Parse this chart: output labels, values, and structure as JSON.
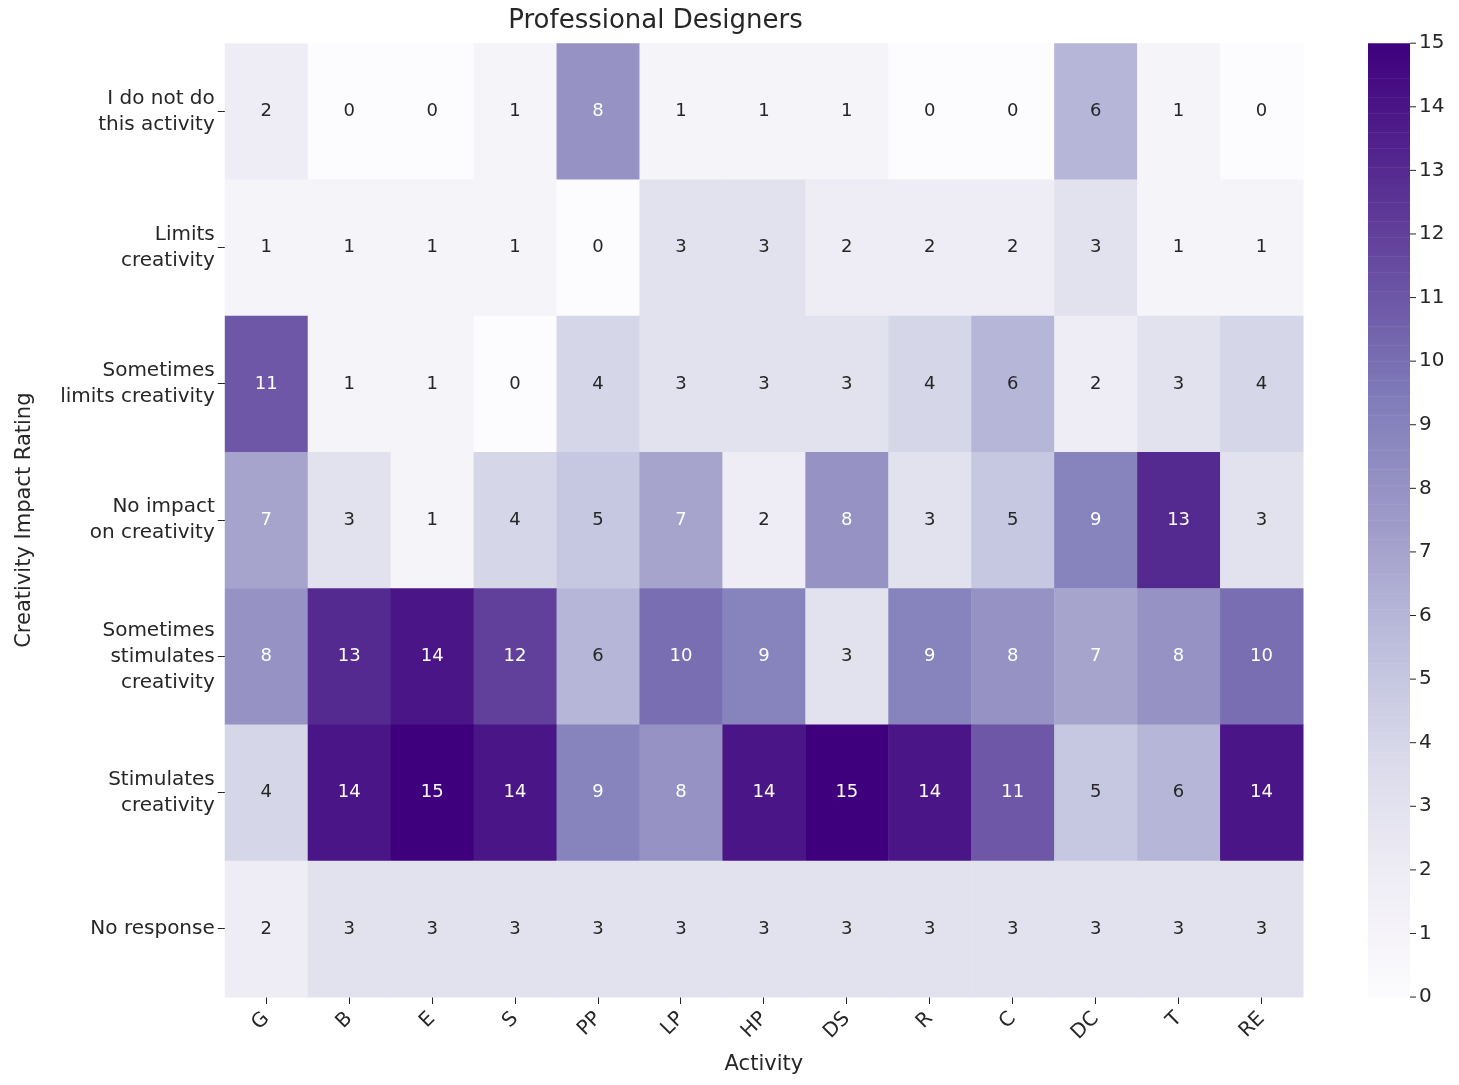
{
  "chart_data": {
    "type": "heatmap",
    "title": "Professional Designers",
    "xlabel": "Activity",
    "ylabel": "Creativity Impact Rating",
    "categories": [
      "G",
      "B",
      "E",
      "S",
      "PP",
      "LP",
      "HP",
      "DS",
      "R",
      "C",
      "DC",
      "T",
      "RE"
    ],
    "y_categories": [
      "I do not do\nthis activity",
      "Limits\ncreativity",
      "Sometimes\nlimits creativity",
      "No impact\non creativity",
      "Sometimes\nstimulates\ncreativity",
      "Stimulates\ncreativity",
      "No response"
    ],
    "cells": [
      [
        2,
        0,
        0,
        1,
        8,
        1,
        1,
        1,
        0,
        0,
        6,
        1,
        0
      ],
      [
        1,
        1,
        1,
        1,
        0,
        3,
        3,
        2,
        2,
        2,
        3,
        1,
        1
      ],
      [
        11,
        1,
        1,
        0,
        4,
        3,
        3,
        3,
        4,
        6,
        2,
        3,
        4
      ],
      [
        7,
        3,
        1,
        4,
        5,
        7,
        2,
        8,
        3,
        5,
        9,
        13,
        3
      ],
      [
        8,
        13,
        14,
        12,
        6,
        10,
        9,
        3,
        9,
        8,
        7,
        8,
        10
      ],
      [
        4,
        14,
        15,
        14,
        9,
        8,
        14,
        15,
        14,
        11,
        5,
        6,
        14
      ],
      [
        2,
        3,
        3,
        3,
        3,
        3,
        3,
        3,
        3,
        3,
        3,
        3,
        3
      ]
    ],
    "clim": [
      0,
      15
    ],
    "cticks": [
      0,
      1,
      2,
      3,
      4,
      5,
      6,
      7,
      8,
      9,
      10,
      11,
      12,
      13,
      14,
      15
    ],
    "data_labels": true,
    "grid": false,
    "legend": false
  }
}
